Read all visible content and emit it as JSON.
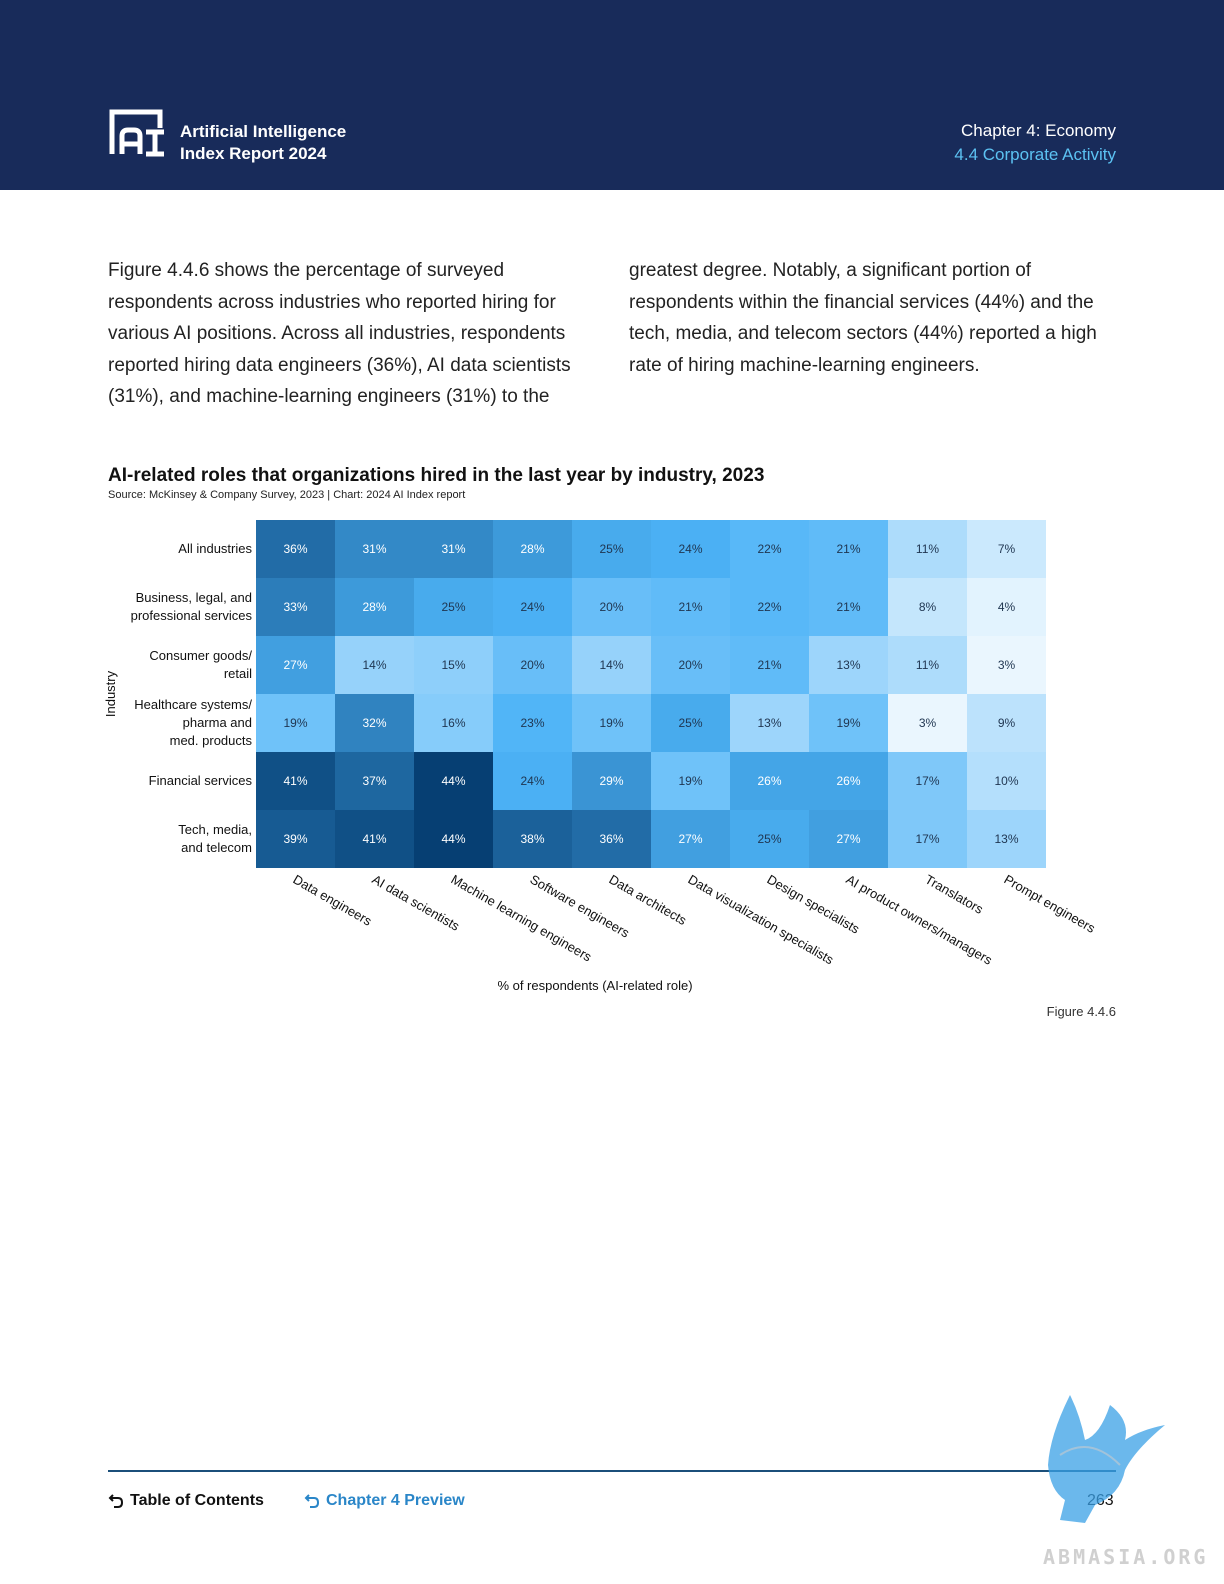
{
  "header": {
    "report_title_line1": "Artificial Intelligence",
    "report_title_line2": "Index Report 2024",
    "chapter": "Chapter 4: Economy",
    "section": "4.4 Corporate Activity",
    "logo_text": "AI"
  },
  "body": {
    "col1": "Figure 4.4.6 shows the percentage of surveyed respondents across industries who reported hiring for various AI positions. Across all industries, respondents reported hiring data engineers (36%), AI data scientists (31%), and machine-learning engineers (31%) to the",
    "col2": "greatest degree. Notably, a significant portion of respondents within the financial services (44%) and the tech, media, and telecom sectors (44%) reported a high rate of hiring machine-learning engineers."
  },
  "chart": {
    "title": "AI-related roles that organizations hired in the last year by industry, 2023",
    "source": "Source: McKinsey & Company Survey, 2023 | Chart: 2024 AI Index report",
    "figure_label": "Figure 4.4.6"
  },
  "chart_data": {
    "type": "heatmap",
    "title": "AI-related roles that organizations hired in the last year by industry, 2023",
    "xlabel": "% of respondents (AI-related role)",
    "ylabel": "Industry",
    "x_categories": [
      "Data engineers",
      "AI data scientists",
      "Machine learning engineers",
      "Software engineers",
      "Data architects",
      "Data visualization specialists",
      "Design specialists",
      "AI product owners/managers",
      "Translators",
      "Prompt engineers"
    ],
    "y_categories": [
      "All industries",
      "Business, legal, and professional services",
      "Consumer goods/ retail",
      "Healthcare systems/ pharma and med. products",
      "Financial services",
      "Tech, media, and telecom"
    ],
    "y_category_lines": [
      [
        "All industries"
      ],
      [
        "Business, legal, and",
        "professional services"
      ],
      [
        "Consumer goods/",
        "retail"
      ],
      [
        "Healthcare systems/",
        "pharma and",
        "med. products"
      ],
      [
        "Financial services"
      ],
      [
        "Tech, media,",
        "and telecom"
      ]
    ],
    "values": [
      [
        36,
        31,
        31,
        28,
        25,
        24,
        22,
        21,
        11,
        7
      ],
      [
        33,
        28,
        25,
        24,
        20,
        21,
        22,
        21,
        8,
        4
      ],
      [
        27,
        14,
        15,
        20,
        14,
        20,
        21,
        13,
        11,
        3
      ],
      [
        19,
        32,
        16,
        23,
        19,
        25,
        13,
        19,
        3,
        9
      ],
      [
        41,
        37,
        44,
        24,
        29,
        19,
        26,
        26,
        17,
        10
      ],
      [
        39,
        41,
        44,
        38,
        36,
        27,
        25,
        27,
        17,
        13
      ]
    ],
    "value_suffix": "%",
    "colors": {
      "low": "#eaf6fe",
      "mid": "#4db3f7",
      "high": "#063f73"
    }
  },
  "footer": {
    "toc": "Table of Contents",
    "chapter_preview": "Chapter 4 Preview",
    "page_number": "263",
    "watermark": "ABMASIA.ORG"
  }
}
